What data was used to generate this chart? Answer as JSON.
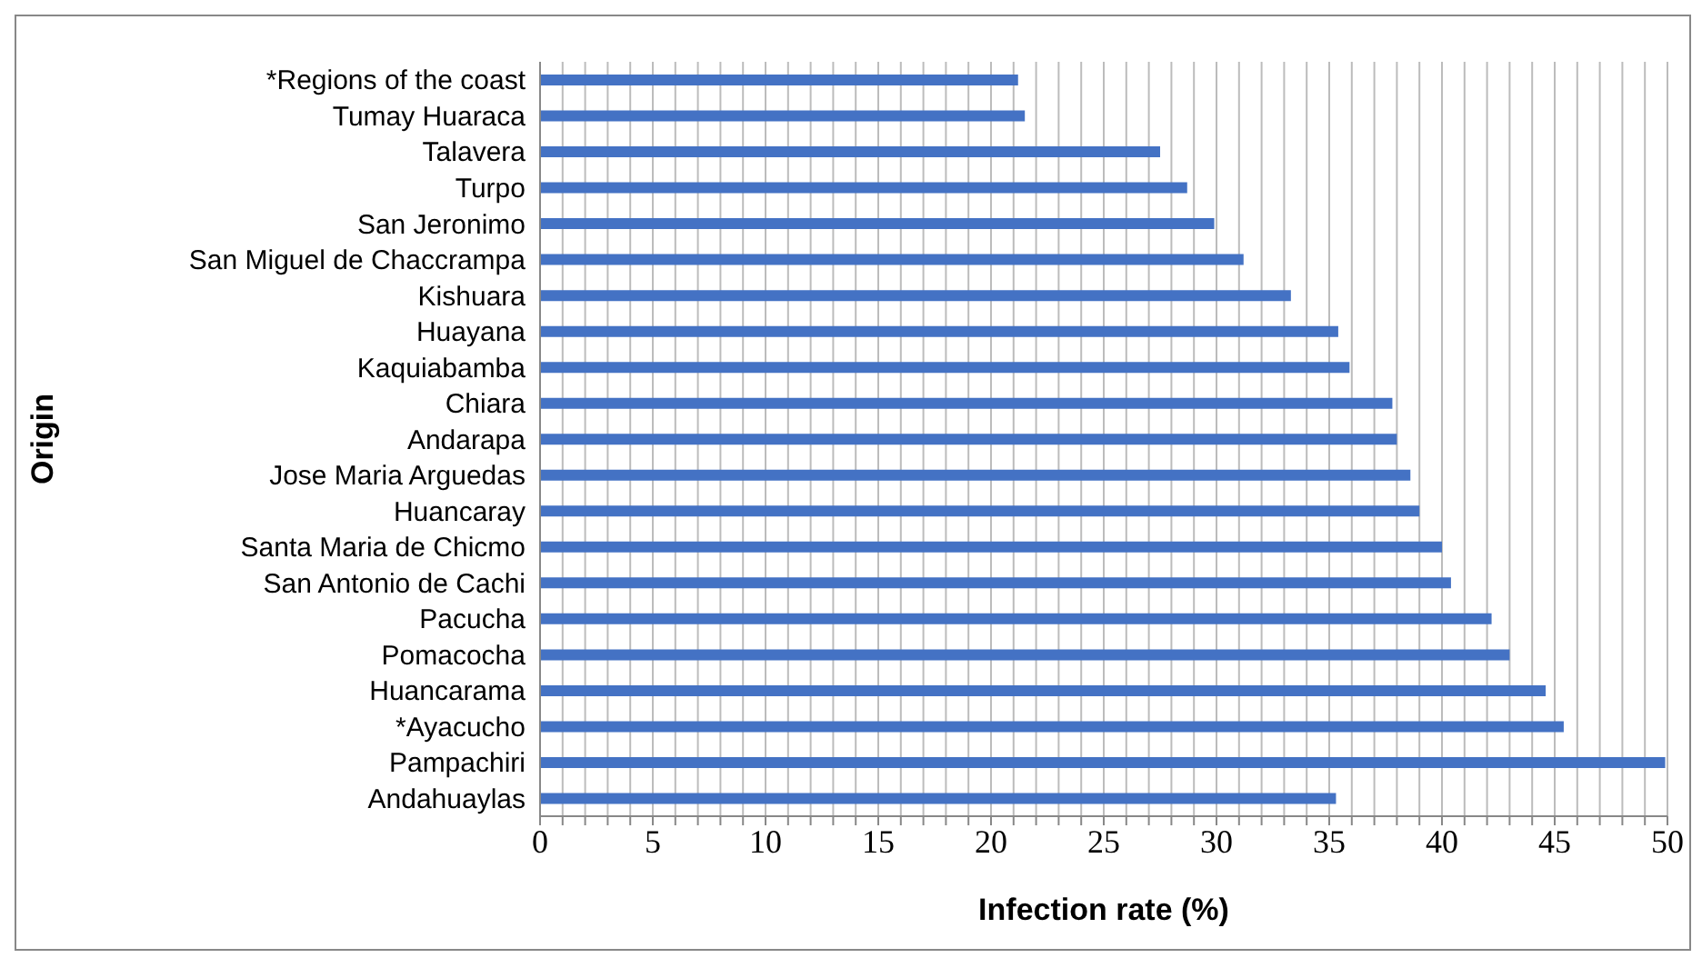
{
  "chart_data": {
    "type": "bar",
    "orientation": "horizontal",
    "xlabel": "Infection rate (%)",
    "ylabel": "Origin",
    "categories": [
      "*Regions of the coast",
      "Tumay Huaraca",
      "Talavera",
      "Turpo",
      "San Jeronimo",
      "San Miguel de Chaccrampa",
      "Kishuara",
      "Huayana",
      "Kaquiabamba",
      "Chiara",
      "Andarapa",
      "Jose Maria Arguedas",
      "Huancaray",
      "Santa Maria de Chicmo",
      "San Antonio de Cachi",
      "Pacucha",
      "Pomacocha",
      "Huancarama",
      "*Ayacucho",
      "Pampachiri",
      "Andahuaylas"
    ],
    "values": [
      21.2,
      21.5,
      27.5,
      28.7,
      29.9,
      31.2,
      33.3,
      35.4,
      35.9,
      37.8,
      38.0,
      38.6,
      39.0,
      40.0,
      40.4,
      42.2,
      43.0,
      44.6,
      45.4,
      49.9,
      35.3
    ],
    "color": "#4472c4",
    "xlim": [
      0,
      50
    ],
    "xticks": [
      0,
      {
        "value": 1,
        "label": null
      },
      {
        "value": 2,
        "label": null
      },
      {
        "value": 3,
        "label": null
      },
      {
        "value": 4,
        "label": null
      },
      5,
      {
        "value": 6,
        "label": null
      },
      {
        "value": 7,
        "label": null
      },
      {
        "value": 8,
        "label": null
      },
      {
        "value": 9,
        "label": null
      },
      10,
      {
        "value": 11,
        "label": null
      },
      {
        "value": 12,
        "label": null
      },
      {
        "value": 13,
        "label": null
      },
      {
        "value": 14,
        "label": null
      },
      15,
      {
        "value": 16,
        "label": null
      },
      {
        "value": 17,
        "label": null
      },
      {
        "value": 18,
        "label": null
      },
      {
        "value": 19,
        "label": null
      },
      20,
      {
        "value": 21,
        "label": null
      },
      {
        "value": 22,
        "label": null
      },
      {
        "value": 23,
        "label": null
      },
      {
        "value": 24,
        "label": null
      },
      25,
      {
        "value": 26,
        "label": null
      },
      {
        "value": 27,
        "label": null
      },
      {
        "value": 28,
        "label": null
      },
      {
        "value": 29,
        "label": null
      },
      30,
      {
        "value": 31,
        "label": null
      },
      {
        "value": 32,
        "label": null
      },
      {
        "value": 33,
        "label": null
      },
      {
        "value": 34,
        "label": null
      },
      35,
      {
        "value": 36,
        "label": null
      },
      {
        "value": 37,
        "label": null
      },
      {
        "value": 38,
        "label": null
      },
      {
        "value": 39,
        "label": null
      },
      40,
      {
        "value": 41,
        "label": null
      },
      {
        "value": 42,
        "label": null
      },
      {
        "value": 43,
        "label": null
      },
      {
        "value": 44,
        "label": null
      },
      45,
      {
        "value": 46,
        "label": null
      },
      {
        "value": 47,
        "label": null
      },
      {
        "value": 48,
        "label": null
      },
      {
        "value": 49,
        "label": null
      },
      50
    ],
    "grid": "x",
    "legend": false
  }
}
